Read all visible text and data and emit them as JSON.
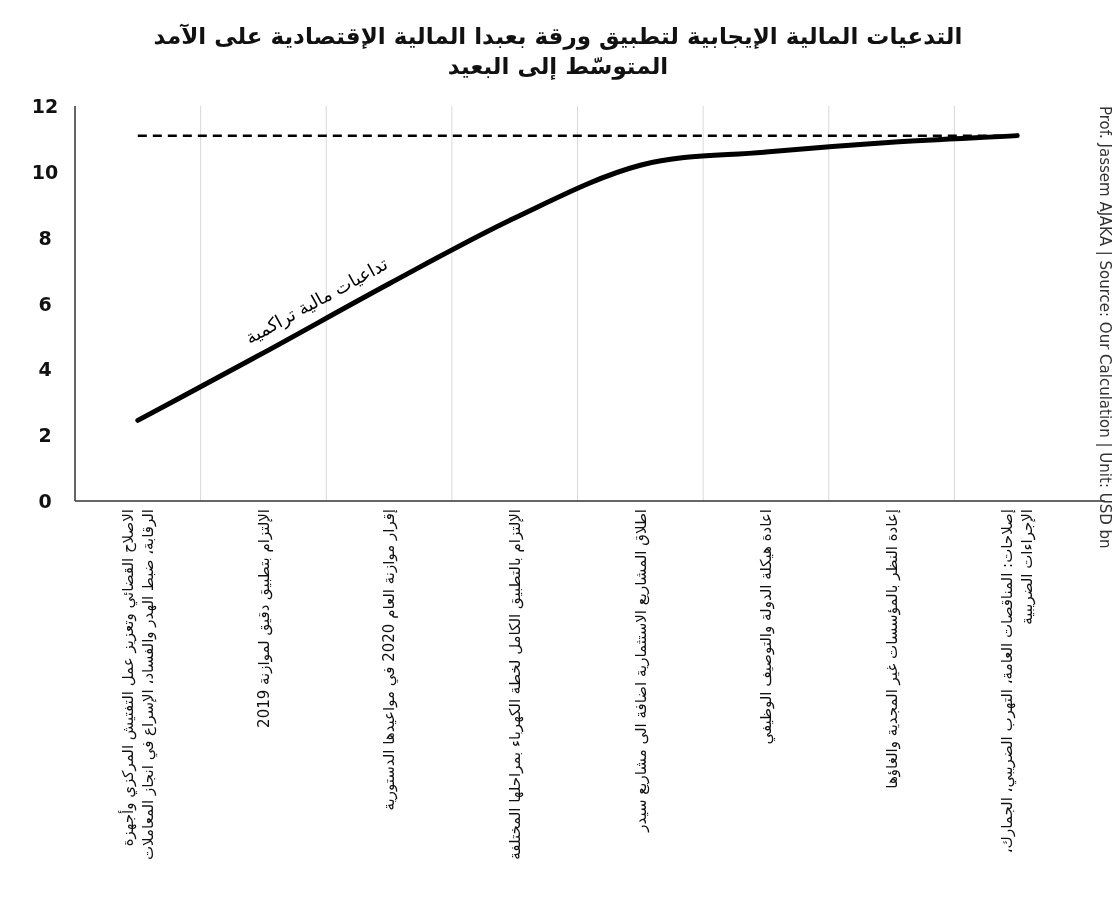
{
  "chart_data": {
    "type": "line",
    "title": "التدعيات المالية الإيجابية لتطبيق ورقة بعبدا المالية الإقتصادية على الآمد المتوسّط إلى البعيد",
    "categories": [
      "الاصلاح القضائي وتعزيز عمل التفتيش المركزي وأجهزة الرقابة، ضبط الهدر والفساد، الإسراع في انجاز المعاملات",
      "الإلتزام بتطبيق دقيق لموازنة 2019",
      "إقرار موازنة العام 2020 في مواعيدها الدستورية",
      "الإلتزام بالتطبيق الكامل لخطة الكهرباء بمراحلها المختلفة",
      "اطلاق المشاريع الاستثمارية اضافة الى مشاريع سيدر",
      "اعادة هيكلة الدولة والتوصيف الوظيفي",
      "إعادة النظر بالمؤسسات غير المجدية والغاؤها",
      "إصلاحات: المناقصات العامة، التهرب الضريبي، الجمارك، الإجراءات الضريبية"
    ],
    "series": [
      {
        "name": "تداعيات مالية تراكمية",
        "color": "#000000",
        "values": [
          2.45,
          4.5,
          6.6,
          8.6,
          10.2,
          10.6,
          10.9,
          11.1
        ]
      }
    ],
    "ylim": [
      0,
      12
    ],
    "yticks": [
      0,
      2,
      4,
      6,
      8,
      10,
      12
    ],
    "grid": "x",
    "line_style": "solid",
    "ref_lines": [
      {
        "axis": "y",
        "value": 11.1,
        "line_style": "dashed",
        "color": "#000000"
      }
    ],
    "annotations": [
      "Prof. Jassem AJAKA | Source: Our Calculation | Unit: USD bn"
    ]
  }
}
